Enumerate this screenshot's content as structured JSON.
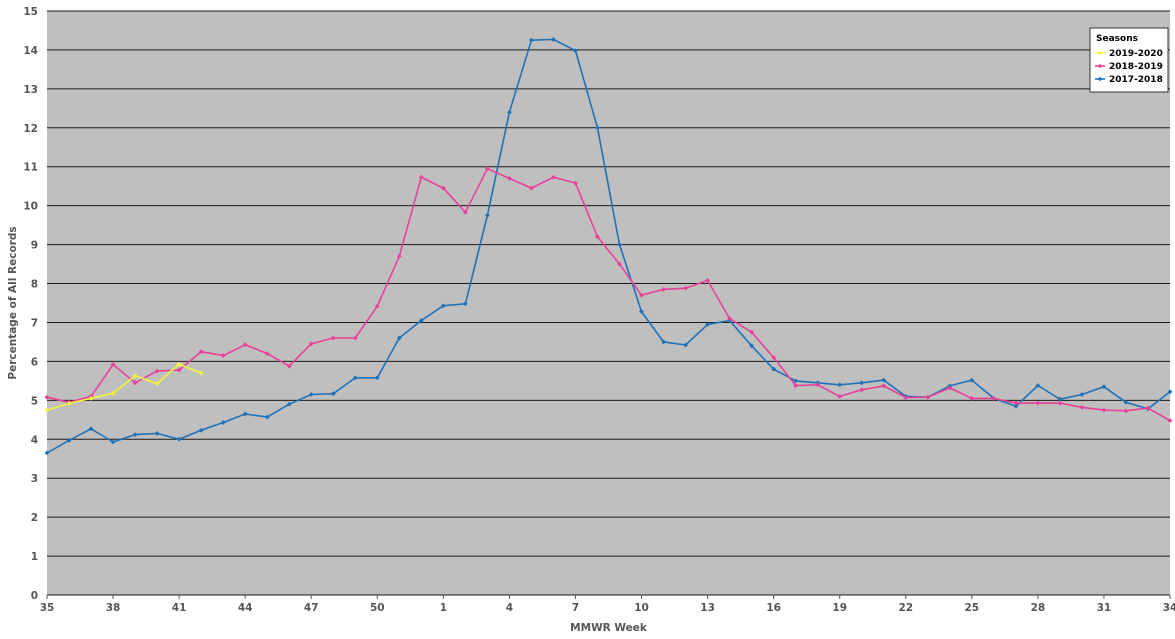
{
  "chart_data": {
    "type": "line",
    "title": "",
    "xlabel": "MMWR Week",
    "ylabel": "Percentage of All Records",
    "ylim": [
      0,
      15
    ],
    "y_ticks": [
      0,
      1,
      2,
      3,
      4,
      5,
      6,
      7,
      8,
      9,
      10,
      11,
      12,
      13,
      14,
      15
    ],
    "grid": true,
    "legend_position": "top-right",
    "legend_title": "Seasons",
    "x_categories": [
      35,
      36,
      37,
      38,
      39,
      40,
      41,
      42,
      43,
      44,
      45,
      46,
      47,
      48,
      49,
      50,
      51,
      52,
      1,
      2,
      3,
      4,
      5,
      6,
      7,
      8,
      9,
      10,
      11,
      12,
      13,
      14,
      15,
      16,
      17,
      18,
      19,
      20,
      21,
      22,
      23,
      24,
      25,
      26,
      27,
      28,
      29,
      30,
      31,
      32,
      33,
      34
    ],
    "x_tick_labels": [
      "35",
      "38",
      "41",
      "44",
      "47",
      "50",
      "1",
      "4",
      "7",
      "10",
      "13",
      "16",
      "19",
      "22",
      "25",
      "28",
      "31",
      "34"
    ],
    "colors": {
      "plot_background": "#bfbfbf",
      "grid": "#1a1a1a",
      "2019-2020": "#f5f53a",
      "2018-2019": "#e8409a",
      "2017-2018": "#1f72b8"
    },
    "series": [
      {
        "name": "2019-2020",
        "values": [
          4.75,
          4.92,
          5.05,
          5.18,
          5.63,
          5.43,
          5.93,
          5.7
        ]
      },
      {
        "name": "2018-2019",
        "values": [
          5.08,
          4.95,
          5.1,
          5.92,
          5.45,
          5.75,
          5.78,
          6.25,
          6.15,
          6.43,
          6.2,
          5.88,
          6.45,
          6.6,
          6.6,
          7.42,
          8.7,
          10.73,
          10.45,
          9.83,
          10.95,
          10.7,
          10.45,
          10.73,
          10.58,
          9.2,
          8.5,
          7.7,
          7.85,
          7.88,
          8.08,
          7.1,
          6.75,
          6.1,
          5.38,
          5.4,
          5.1,
          5.27,
          5.37,
          5.07,
          5.08,
          5.32,
          5.05,
          5.05,
          4.93,
          4.93,
          4.93,
          4.82,
          4.75,
          4.73,
          4.8,
          4.48
        ]
      },
      {
        "name": "2017-2018",
        "values": [
          3.65,
          3.97,
          4.27,
          3.93,
          4.12,
          4.15,
          4.0,
          4.23,
          4.43,
          4.65,
          4.57,
          4.9,
          5.15,
          5.17,
          5.58,
          5.58,
          6.6,
          7.05,
          7.43,
          7.48,
          9.75,
          12.4,
          14.25,
          14.27,
          13.98,
          12.0,
          9.0,
          7.28,
          6.5,
          6.42,
          6.95,
          7.05,
          6.4,
          5.8,
          5.5,
          5.45,
          5.4,
          5.45,
          5.52,
          5.1,
          5.08,
          5.37,
          5.52,
          5.05,
          4.85,
          5.38,
          5.03,
          5.15,
          5.35,
          4.95,
          4.78,
          5.22
        ]
      }
    ]
  }
}
